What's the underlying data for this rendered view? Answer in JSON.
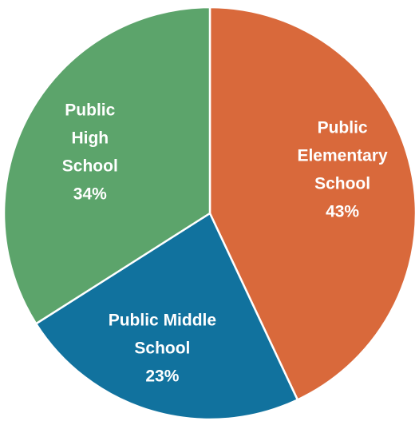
{
  "chart_data": {
    "type": "pie",
    "title": "",
    "start_angle_deg": 0,
    "direction": "clockwise",
    "slices": [
      {
        "label_lines": [
          "Public",
          "Elementary",
          "School"
        ],
        "percent_label": "43%",
        "value": 43,
        "color": "#D9693B"
      },
      {
        "label_lines": [
          "Public Middle",
          "School"
        ],
        "percent_label": "23%",
        "value": 23,
        "color": "#11729E"
      },
      {
        "label_lines": [
          "Public",
          "High",
          "School"
        ],
        "percent_label": "34%",
        "value": 34,
        "color": "#5CA46B"
      }
    ]
  }
}
